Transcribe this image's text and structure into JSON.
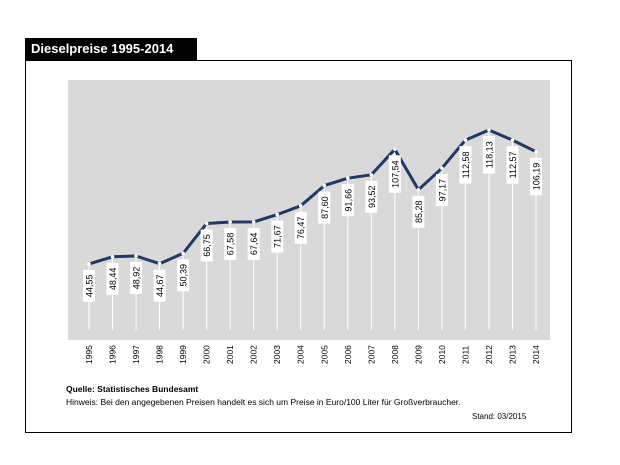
{
  "header": {
    "title": "Dieselpreise 1995-2014"
  },
  "footer": {
    "source": "Quelle: Statistisches  Bundesamt",
    "note": "Hinweis:  Bei den angegebenen  Preisen handelt  es sich um Preise in Euro/100 Liter für Großverbraucher.",
    "stand": "Stand: 03/2015"
  },
  "colors": {
    "line": "#1f3864",
    "plot_bg": "#d9d9d9",
    "label_bg": "#ffffff"
  },
  "chart_data": {
    "type": "line",
    "title": "Dieselpreise 1995-2014",
    "xlabel": "",
    "ylabel": "",
    "x": [
      "1995",
      "1996",
      "1997",
      "1998",
      "1999",
      "2000",
      "2001",
      "2002",
      "2003",
      "2004",
      "2005",
      "2006",
      "2007",
      "2008",
      "2009",
      "2010",
      "2011",
      "2012",
      "2013",
      "2014"
    ],
    "series": [
      {
        "values": [
          44.55,
          48.44,
          48.92,
          44.67,
          50.39,
          66.75,
          67.58,
          67.64,
          71.67,
          76.47,
          87.6,
          91.66,
          93.52,
          107.54,
          85.28,
          97.17,
          112.58,
          118.13,
          112.57,
          106.19
        ],
        "labels": [
          "44,55",
          "48,44",
          "48,92",
          "44,67",
          "50,39",
          "66,75",
          "67,58",
          "67,64",
          "71,67",
          "76,47",
          "87,60",
          "91,66",
          "93,52",
          "107,54",
          "85,28",
          "97,17",
          "112,58",
          "118,13",
          "112,57",
          "106,19"
        ]
      }
    ],
    "ylim": [
      0,
      130
    ],
    "grid": false,
    "legend": "none"
  }
}
